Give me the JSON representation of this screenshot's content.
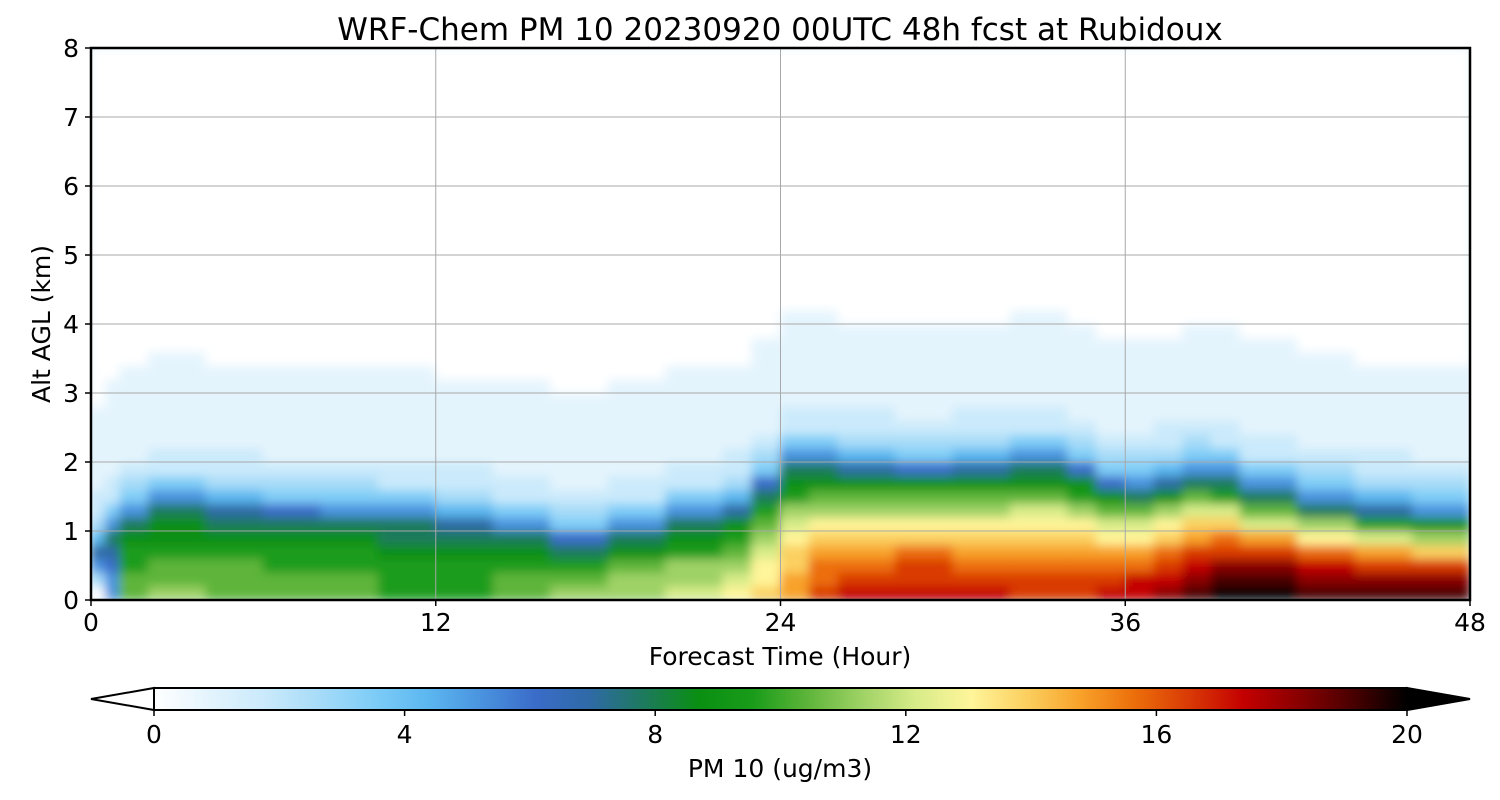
{
  "chart_data": {
    "type": "heatmap",
    "title": "WRF-Chem PM 10  20230920 00UTC 48h fcst at Rubidoux",
    "xlabel": "Forecast Time (Hour)",
    "ylabel": "Alt AGL (km)",
    "xlim": [
      0,
      48
    ],
    "ylim": [
      0,
      8
    ],
    "x_ticks": [
      0,
      12,
      24,
      36,
      48
    ],
    "y_ticks": [
      0,
      1,
      2,
      3,
      4,
      5,
      6,
      7,
      8
    ],
    "grid": true,
    "colorbar": {
      "label": "PM 10  (ug/m3)",
      "range": [
        0,
        20
      ],
      "ticks": [
        0,
        4,
        8,
        12,
        16,
        20
      ],
      "extend": "both",
      "colors": [
        "#ffffff",
        "#e4f4fd",
        "#cbeafb",
        "#a8dcf8",
        "#7fcdf7",
        "#5cb8f0",
        "#4a93df",
        "#3a6cc9",
        "#2f6aa6",
        "#1d7a5c",
        "#0a8f12",
        "#1a9c1a",
        "#5eb53a",
        "#9fd266",
        "#d8ec8a",
        "#fff59a",
        "#fbd060",
        "#f8a22a",
        "#ec6e0a",
        "#d93a06",
        "#c40000",
        "#8a0000",
        "#4a0000",
        "#000000"
      ]
    },
    "hours": [
      0,
      0.5,
      1,
      2,
      4,
      6,
      8,
      10,
      12,
      14,
      16,
      18,
      20,
      22,
      23,
      24,
      25,
      26,
      28,
      30,
      32,
      33,
      34,
      35,
      36,
      37,
      38,
      39,
      40,
      42,
      44,
      46,
      48
    ],
    "pm10_top_kick": [
      0.5,
      0.8,
      1.0,
      1.3,
      1.3,
      1.2,
      1.2,
      1.1,
      1.1,
      1.0,
      0.8,
      0.8,
      1.0,
      1.2,
      1.3,
      1.9,
      1.9,
      1.9,
      1.8,
      1.8,
      1.9,
      1.9,
      1.9,
      1.7,
      1.5,
      1.6,
      1.7,
      1.8,
      1.6,
      1.4,
      1.3,
      1.2,
      1.1
    ],
    "pm10_surface": [
      0,
      0,
      10.5,
      10.8,
      11.2,
      10.5,
      10.8,
      10.5,
      9.5,
      10.5,
      11,
      11.5,
      12,
      12.5,
      13,
      14.5,
      16,
      17,
      17.5,
      17.5,
      17,
      17,
      17,
      17,
      17.5,
      18,
      19,
      19.5,
      20,
      20,
      19.5,
      19.5,
      19
    ]
  }
}
